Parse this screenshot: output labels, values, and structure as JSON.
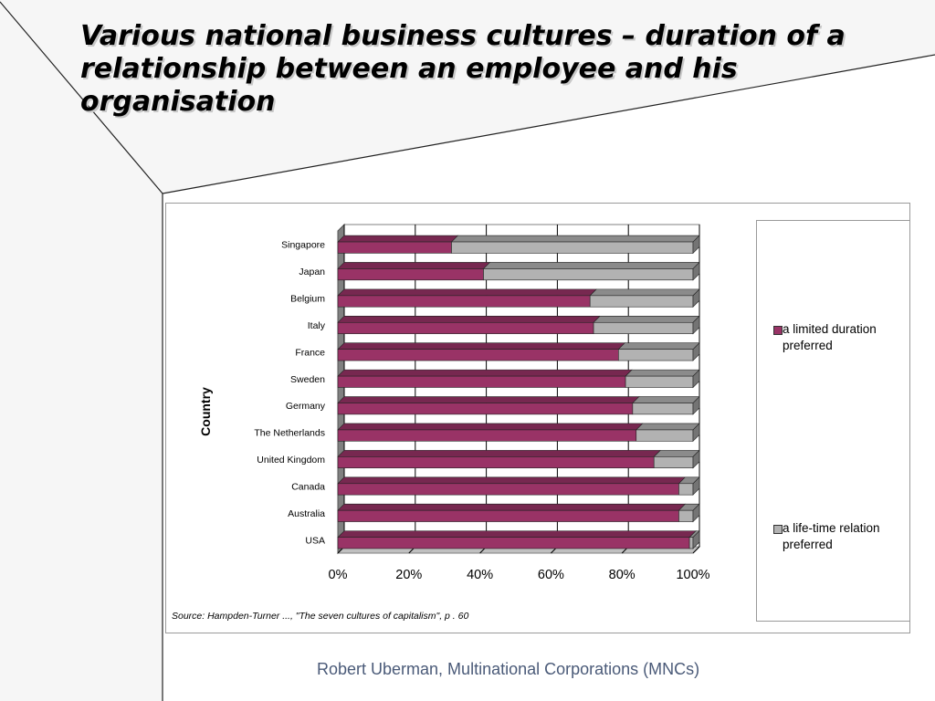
{
  "slide": {
    "title": "Various national business cultures – duration of a relationship between an employee and his organisation",
    "footer": "Robert Uberman, Multinational Corporations (MNCs)",
    "source": "Source: Hampden-Turner ..., \"The seven cultures of capitalism\", p . 60"
  },
  "chart_data": {
    "type": "bar",
    "orientation": "horizontal",
    "stacked": "percent",
    "three_d": true,
    "categories": [
      "Singapore",
      "Japan",
      "Belgium",
      "Italy",
      "France",
      "Sweden",
      "Germany",
      "The Netherlands",
      "United Kingdom",
      "Canada",
      "Australia",
      "USA"
    ],
    "series": [
      {
        "name": "a limited duration preferred",
        "color": "#993366",
        "values": [
          32,
          41,
          71,
          72,
          79,
          81,
          83,
          84,
          89,
          96,
          96,
          99
        ]
      },
      {
        "name": "a life-time relation preferred",
        "color": "#b2b2b2",
        "values": [
          68,
          59,
          29,
          28,
          21,
          19,
          17,
          16,
          11,
          4,
          4,
          1
        ]
      }
    ],
    "ylabel": "Country",
    "xlabel": "",
    "xlim": [
      0,
      100
    ],
    "x_ticks": [
      "0%",
      "20%",
      "40%",
      "60%",
      "80%",
      "100%"
    ],
    "grid": true,
    "legend_position": "right"
  }
}
